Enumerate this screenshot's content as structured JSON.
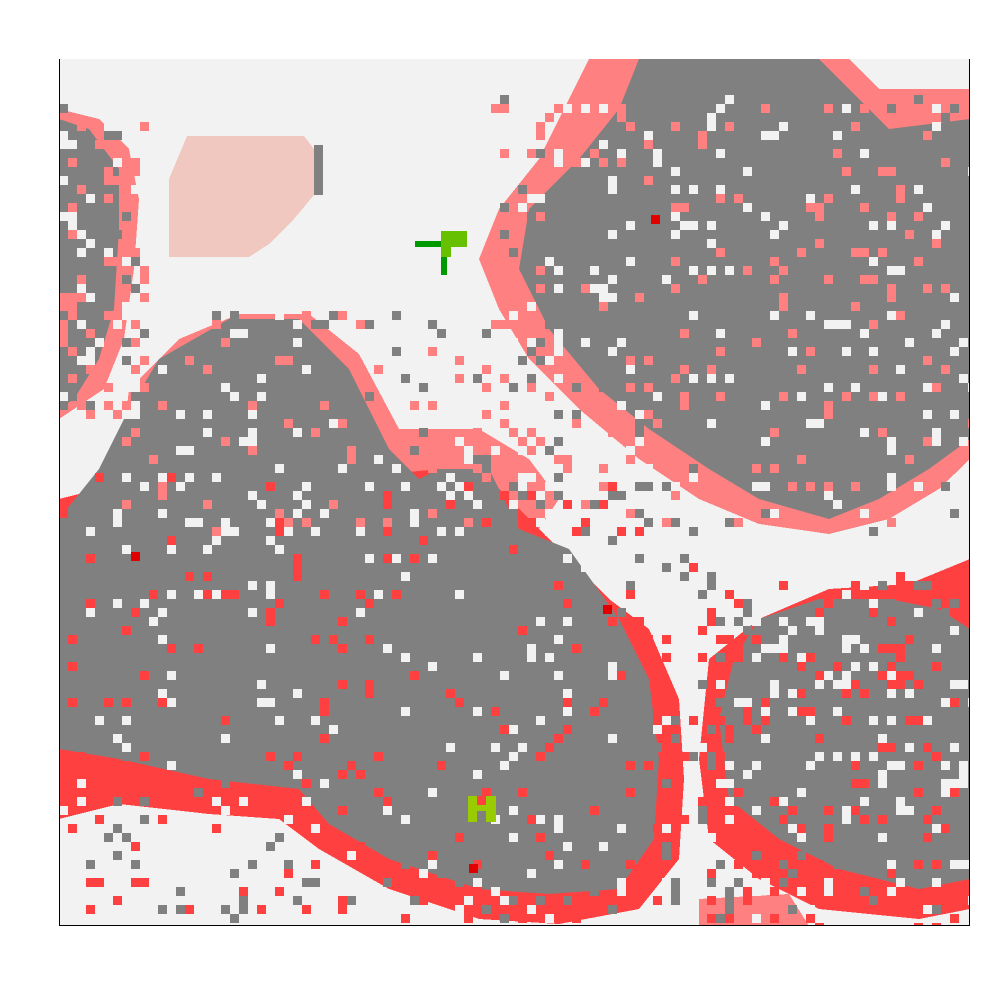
{
  "map": {
    "type": "occupancy-grid",
    "colors": {
      "free": "#f2f2f2",
      "obstacle": "#808080",
      "inflation_light": "#ff8080",
      "inflation_strong": "#ff4040",
      "lethal": "#e00000",
      "region": "#f0c8c0",
      "goal_marker": "#66c000",
      "robot_marker": "#99cc00",
      "path": "#009900"
    },
    "legend": [],
    "markers": [
      {
        "name": "goal",
        "icon": "flag-icon"
      },
      {
        "name": "robot",
        "icon": "robot-icon"
      }
    ]
  }
}
